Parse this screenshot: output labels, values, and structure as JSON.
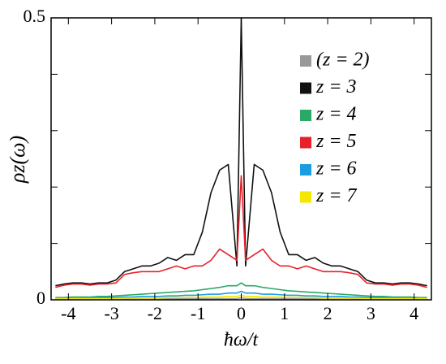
{
  "chart_data": {
    "type": "line",
    "xlabel": "ħω/t",
    "ylabel": "ρz(ω)",
    "x": [
      -4.3,
      -4.1,
      -3.9,
      -3.7,
      -3.5,
      -3.3,
      -3.1,
      -2.9,
      -2.7,
      -2.5,
      -2.3,
      -2.1,
      -1.9,
      -1.7,
      -1.5,
      -1.3,
      -1.1,
      -0.9,
      -0.7,
      -0.5,
      -0.3,
      -0.1,
      0,
      0.1,
      0.3,
      0.5,
      0.7,
      0.9,
      1.1,
      1.3,
      1.5,
      1.7,
      1.9,
      2.1,
      2.3,
      2.5,
      2.7,
      2.9,
      3.1,
      3.3,
      3.5,
      3.7,
      3.9,
      4.1,
      4.3
    ],
    "series": [
      {
        "name": "(z = 2)",
        "color": "#999999",
        "values": [
          0.002,
          0.002,
          0.002,
          0.002,
          0.002,
          0.002,
          0.002,
          0.002,
          0.002,
          0.002,
          0.002,
          0.002,
          0.002,
          0.002,
          0.002,
          0.002,
          0.002,
          0.002,
          0.002,
          0.002,
          0.002,
          0.002,
          0.004,
          0.002,
          0.002,
          0.002,
          0.002,
          0.002,
          0.002,
          0.002,
          0.002,
          0.002,
          0.002,
          0.002,
          0.002,
          0.002,
          0.002,
          0.002,
          0.002,
          0.002,
          0.002,
          0.002,
          0.002,
          0.002,
          0.002
        ]
      },
      {
        "name": "z = 3",
        "color": "#111111",
        "values": [
          0.025,
          0.028,
          0.03,
          0.03,
          0.028,
          0.03,
          0.03,
          0.035,
          0.05,
          0.055,
          0.06,
          0.06,
          0.065,
          0.075,
          0.07,
          0.08,
          0.08,
          0.12,
          0.19,
          0.23,
          0.24,
          0.06,
          0.5,
          0.06,
          0.24,
          0.23,
          0.19,
          0.12,
          0.08,
          0.08,
          0.07,
          0.075,
          0.065,
          0.06,
          0.06,
          0.055,
          0.05,
          0.035,
          0.03,
          0.03,
          0.028,
          0.03,
          0.03,
          0.028,
          0.025
        ]
      },
      {
        "name": "z = 4",
        "color": "#2aa866",
        "values": [
          0.004,
          0.004,
          0.005,
          0.005,
          0.005,
          0.006,
          0.006,
          0.007,
          0.008,
          0.009,
          0.01,
          0.011,
          0.012,
          0.013,
          0.014,
          0.015,
          0.016,
          0.018,
          0.02,
          0.022,
          0.025,
          0.025,
          0.03,
          0.025,
          0.025,
          0.022,
          0.02,
          0.018,
          0.016,
          0.015,
          0.014,
          0.013,
          0.012,
          0.011,
          0.01,
          0.009,
          0.008,
          0.007,
          0.006,
          0.006,
          0.005,
          0.005,
          0.005,
          0.004,
          0.004
        ]
      },
      {
        "name": "z = 5",
        "color": "#e8202a",
        "values": [
          0.022,
          0.026,
          0.028,
          0.028,
          0.026,
          0.028,
          0.028,
          0.03,
          0.045,
          0.048,
          0.05,
          0.05,
          0.05,
          0.055,
          0.06,
          0.055,
          0.06,
          0.06,
          0.07,
          0.09,
          0.08,
          0.07,
          0.22,
          0.07,
          0.08,
          0.09,
          0.07,
          0.06,
          0.06,
          0.055,
          0.06,
          0.055,
          0.05,
          0.05,
          0.05,
          0.048,
          0.045,
          0.03,
          0.028,
          0.028,
          0.026,
          0.028,
          0.028,
          0.026,
          0.022
        ]
      },
      {
        "name": "z = 6",
        "color": "#1a9ee0",
        "values": [
          0.003,
          0.003,
          0.003,
          0.003,
          0.004,
          0.004,
          0.004,
          0.004,
          0.005,
          0.005,
          0.006,
          0.006,
          0.006,
          0.007,
          0.007,
          0.008,
          0.008,
          0.009,
          0.01,
          0.01,
          0.012,
          0.012,
          0.015,
          0.012,
          0.012,
          0.01,
          0.01,
          0.009,
          0.008,
          0.008,
          0.007,
          0.007,
          0.006,
          0.006,
          0.006,
          0.005,
          0.005,
          0.004,
          0.004,
          0.004,
          0.004,
          0.003,
          0.003,
          0.003,
          0.003
        ]
      },
      {
        "name": "z = 7",
        "color": "#f5e600",
        "values": [
          0.002,
          0.002,
          0.002,
          0.002,
          0.002,
          0.002,
          0.002,
          0.002,
          0.003,
          0.003,
          0.003,
          0.003,
          0.003,
          0.004,
          0.004,
          0.004,
          0.004,
          0.005,
          0.005,
          0.005,
          0.006,
          0.006,
          0.008,
          0.006,
          0.006,
          0.005,
          0.005,
          0.005,
          0.004,
          0.004,
          0.004,
          0.004,
          0.003,
          0.003,
          0.003,
          0.003,
          0.003,
          0.002,
          0.002,
          0.002,
          0.002,
          0.002,
          0.002,
          0.002,
          0.002
        ]
      }
    ],
    "xlim": [
      -4.4,
      4.4
    ],
    "xticks": [
      -4,
      -3,
      -2,
      -1,
      0,
      1,
      2,
      3,
      4
    ],
    "ylim": [
      0,
      0.5
    ],
    "yticks": [
      0,
      0.5
    ],
    "minor_yticks": [
      0.1,
      0.2,
      0.3,
      0.4
    ],
    "legend": "upper right"
  }
}
